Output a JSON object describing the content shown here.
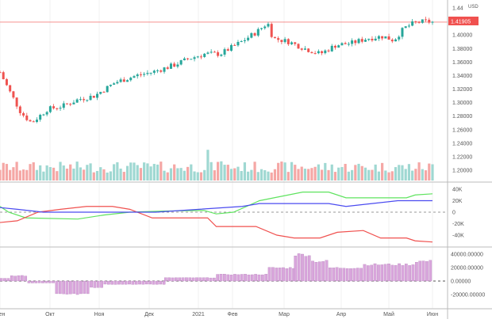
{
  "chart_data": {
    "type": "candlestick",
    "currency": "USD",
    "last_price": "1.41905",
    "price_ticks": [
      "1.44",
      "1.40000",
      "1.38000",
      "1.36000",
      "1.34000",
      "1.32000",
      "1.30000",
      "1.28000",
      "1.26000",
      "1.24000",
      "1.22000",
      "1.20000"
    ],
    "price_tick_values": [
      1.44,
      1.4,
      1.38,
      1.36,
      1.34,
      1.32,
      1.3,
      1.28,
      1.26,
      1.24,
      1.22,
      1.2
    ],
    "price_keypoints": [
      [
        0,
        1.345
      ],
      [
        8,
        1.32
      ],
      [
        20,
        1.285
      ],
      [
        30,
        1.27
      ],
      [
        45,
        1.29
      ],
      [
        60,
        1.295
      ],
      [
        75,
        1.305
      ],
      [
        90,
        1.31
      ],
      [
        110,
        1.33
      ],
      [
        130,
        1.34
      ],
      [
        145,
        1.345
      ],
      [
        165,
        1.355
      ],
      [
        180,
        1.365
      ],
      [
        195,
        1.372
      ],
      [
        210,
        1.372
      ],
      [
        230,
        1.39
      ],
      [
        245,
        1.405
      ],
      [
        255,
        1.418
      ],
      [
        260,
        1.395
      ],
      [
        275,
        1.39
      ],
      [
        290,
        1.38
      ],
      [
        305,
        1.372
      ],
      [
        320,
        1.385
      ],
      [
        335,
        1.388
      ],
      [
        350,
        1.395
      ],
      [
        365,
        1.398
      ],
      [
        375,
        1.392
      ],
      [
        385,
        1.41
      ],
      [
        395,
        1.418
      ],
      [
        405,
        1.42
      ],
      [
        412,
        1.419
      ]
    ],
    "candle_count": 130,
    "oscillator": {
      "ticks": [
        "40K",
        "20K",
        "0",
        "-20K",
        "-40K"
      ],
      "tick_values": [
        40000,
        20000,
        0,
        -20000,
        -40000
      ],
      "series": [
        {
          "name": "green",
          "color": "#5fe35f",
          "points": [
            [
              0,
              10000
            ],
            [
              5,
              0
            ],
            [
              15,
              -10000
            ],
            [
              45,
              -12000
            ],
            [
              60,
              -5000
            ],
            [
              75,
              0
            ],
            [
              95,
              2000
            ],
            [
              118,
              3000
            ],
            [
              125,
              -3000
            ],
            [
              135,
              0
            ],
            [
              150,
              20000
            ],
            [
              175,
              35000
            ],
            [
              190,
              35000
            ],
            [
              200,
              25000
            ],
            [
              215,
              25000
            ],
            [
              235,
              25000
            ],
            [
              240,
              30000
            ],
            [
              250,
              32000
            ]
          ]
        },
        {
          "name": "red",
          "color": "#f0514f",
          "points": [
            [
              0,
              -18000
            ],
            [
              10,
              -15000
            ],
            [
              22,
              0
            ],
            [
              35,
              5000
            ],
            [
              50,
              10000
            ],
            [
              65,
              10000
            ],
            [
              75,
              5000
            ],
            [
              88,
              -10000
            ],
            [
              120,
              -10000
            ],
            [
              125,
              -25000
            ],
            [
              148,
              -25000
            ],
            [
              160,
              -40000
            ],
            [
              170,
              -45000
            ],
            [
              185,
              -45000
            ],
            [
              195,
              -35000
            ],
            [
              210,
              -32000
            ],
            [
              220,
              -45000
            ],
            [
              235,
              -45000
            ],
            [
              240,
              -50000
            ],
            [
              250,
              -52000
            ]
          ]
        },
        {
          "name": "blue",
          "color": "#4b4bf0",
          "points": [
            [
              0,
              8000
            ],
            [
              10,
              5000
            ],
            [
              25,
              0
            ],
            [
              90,
              0
            ],
            [
              115,
              5000
            ],
            [
              140,
              10000
            ],
            [
              150,
              15000
            ],
            [
              190,
              15000
            ],
            [
              200,
              10000
            ],
            [
              215,
              15000
            ],
            [
              230,
              20000
            ],
            [
              250,
              20000
            ]
          ]
        }
      ]
    },
    "histogram": {
      "ticks": [
        "40000.00000",
        "20000.00000",
        "0.00000",
        "-20000.00000"
      ],
      "tick_values": [
        40000,
        20000,
        0,
        -20000
      ],
      "blocks": [
        [
          0,
          6,
          4000
        ],
        [
          6,
          16,
          8000
        ],
        [
          16,
          32,
          -3000
        ],
        [
          32,
          52,
          -20000
        ],
        [
          52,
          60,
          -10000
        ],
        [
          60,
          95,
          -5000
        ],
        [
          95,
          125,
          5000
        ],
        [
          125,
          155,
          10000
        ],
        [
          155,
          170,
          20000
        ],
        [
          170,
          180,
          40000
        ],
        [
          180,
          190,
          30000
        ],
        [
          190,
          210,
          20000
        ],
        [
          210,
          240,
          25000
        ],
        [
          240,
          250,
          30000
        ]
      ]
    },
    "x_labels": [
      "Сен",
      "Окт",
      "Ноя",
      "Дек",
      "2021",
      "Фев",
      "Мар",
      "Апр",
      "Май",
      "Июн"
    ],
    "x_label_positions": [
      0,
      63,
      125,
      188,
      250,
      293,
      358,
      430,
      490,
      545
    ]
  }
}
